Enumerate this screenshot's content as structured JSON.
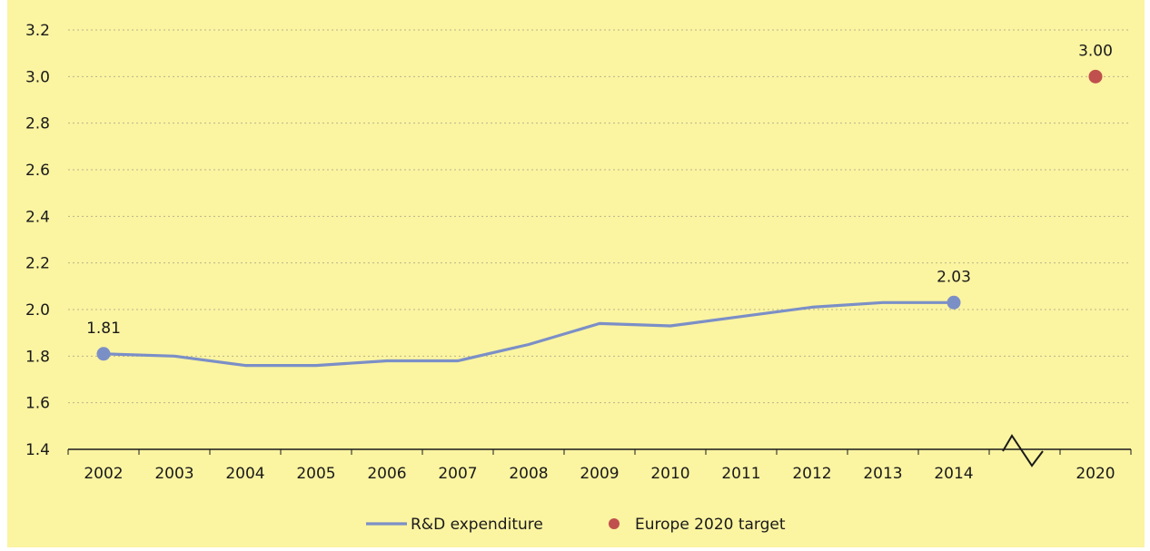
{
  "chart_data": {
    "type": "line",
    "x": [
      "2002",
      "2003",
      "2004",
      "2005",
      "2006",
      "2007",
      "2008",
      "2009",
      "2010",
      "2011",
      "2012",
      "2013",
      "2014",
      "",
      "2020"
    ],
    "ylim": [
      1.4,
      3.2
    ],
    "yticks": [
      "1.4",
      "1.6",
      "1.8",
      "2.0",
      "2.2",
      "2.4",
      "2.6",
      "2.8",
      "3.0",
      "3.2"
    ],
    "grid": true,
    "axis_break_between": [
      "2014",
      "2020"
    ],
    "legend_position": "bottom",
    "series": [
      {
        "name": "R&D expenditure",
        "color": "#7b8fc7",
        "values": [
          1.81,
          1.8,
          1.76,
          1.76,
          1.78,
          1.78,
          1.85,
          1.94,
          1.93,
          1.97,
          2.01,
          2.03,
          2.03,
          null,
          null
        ],
        "labels": [
          {
            "x": "2002",
            "text": "1.81"
          },
          {
            "x": "2014",
            "text": "2.03"
          }
        ]
      },
      {
        "name": "Europe 2020 target",
        "color": "#c0504d",
        "values": [
          null,
          null,
          null,
          null,
          null,
          null,
          null,
          null,
          null,
          null,
          null,
          null,
          null,
          null,
          3.0
        ],
        "labels": [
          {
            "x": "2020",
            "text": "3.00"
          }
        ]
      }
    ],
    "background_color": "#fbf4a1"
  }
}
